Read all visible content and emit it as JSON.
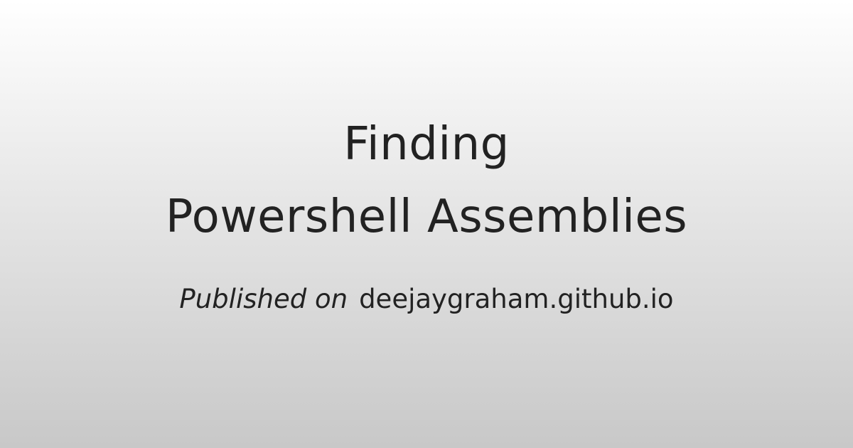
{
  "title": {
    "line1": "Finding",
    "line2": "Powershell Assemblies"
  },
  "meta": {
    "label": "Published on",
    "site": "deejaygraham.github.io"
  }
}
